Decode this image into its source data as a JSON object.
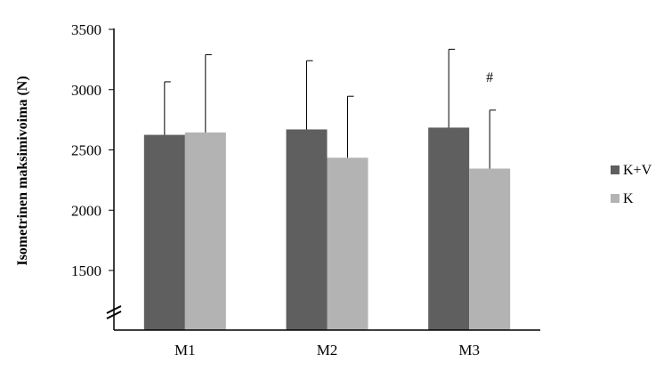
{
  "chart_data": {
    "type": "bar",
    "title": "",
    "xlabel": "",
    "ylabel": "Isometrinen maksimivoima (N)",
    "categories": [
      "M1",
      "M2",
      "M3"
    ],
    "series": [
      {
        "name": "K+V",
        "values": [
          2625,
          2670,
          2685
        ],
        "errors": [
          440,
          570,
          650
        ],
        "color": "#5f5f5f"
      },
      {
        "name": "K",
        "values": [
          2645,
          2435,
          2345
        ],
        "errors": [
          645,
          510,
          485
        ],
        "color": "#b3b3b3"
      }
    ],
    "yticks": [
      1500,
      2000,
      2500,
      3000,
      3500
    ],
    "ylim": [
      1000,
      3500
    ],
    "axis_break": true,
    "grid": false,
    "legend": "right",
    "annotations": [
      {
        "text": "#",
        "category": "M3",
        "series": "K"
      }
    ]
  }
}
